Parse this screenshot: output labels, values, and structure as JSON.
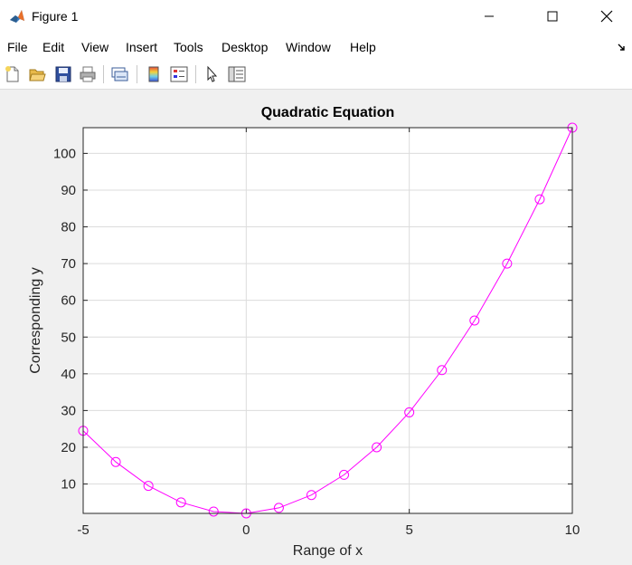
{
  "window": {
    "title": "Figure 1"
  },
  "menu": {
    "items": [
      "File",
      "Edit",
      "View",
      "Insert",
      "Tools",
      "Desktop",
      "Window",
      "Help"
    ]
  },
  "toolbar": {
    "icons": [
      "new-figure-icon",
      "open-file-icon",
      "save-icon",
      "print-icon",
      "link-plot-icon",
      "insert-colorbar-icon",
      "insert-legend-icon",
      "edit-plot-icon",
      "property-inspector-icon"
    ]
  },
  "colors": {
    "series": "#ff00ff",
    "grid": "#dcdcdc",
    "axes": "#262626"
  },
  "chart_data": {
    "type": "line",
    "title": "Quadratic Equation",
    "xlabel": "Range of x",
    "ylabel": "Corresponding y",
    "xlim": [
      -5,
      10
    ],
    "ylim": [
      2,
      107
    ],
    "x_ticks": [
      -5,
      0,
      5,
      10
    ],
    "y_ticks": [
      10,
      20,
      30,
      40,
      50,
      60,
      70,
      80,
      90,
      100
    ],
    "grid": true,
    "marker": "circle",
    "series": [
      {
        "x": [
          -5,
          -4,
          -3,
          -2,
          -1,
          0,
          1,
          2,
          3,
          4,
          5,
          6,
          7,
          8,
          9,
          10
        ],
        "y": [
          24.5,
          16,
          9.5,
          5,
          2.5,
          2,
          3.5,
          7,
          12.5,
          20,
          29.5,
          41,
          54.5,
          70,
          87.5,
          107
        ]
      }
    ]
  }
}
